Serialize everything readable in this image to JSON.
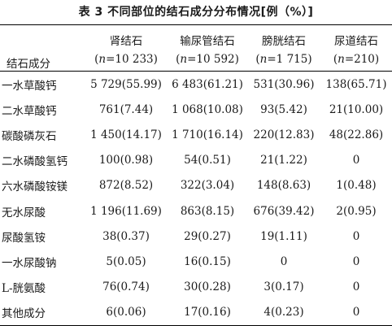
{
  "title": "表 3   不同部位的结石成分分布情况[例（%）]",
  "header": {
    "row_label": "结石成分",
    "columns": [
      {
        "label": "肾结石",
        "n_prefix": "(",
        "n_var": "n",
        "n_value": "=10 233)"
      },
      {
        "label": "输尿管结石",
        "n_prefix": "(",
        "n_var": "n",
        "n_value": "=10 592)"
      },
      {
        "label": "膀胱结石",
        "n_prefix": "(",
        "n_var": "n",
        "n_value": "=1 715)"
      },
      {
        "label": "尿道结石",
        "n_prefix": "(",
        "n_var": "n",
        "n_value": "=210)"
      }
    ]
  },
  "rows": [
    {
      "name": "一水草酸钙",
      "cells": [
        "5 729(55.99)",
        "6 483(61.21)",
        "531(30.96)",
        "138(65.71)"
      ]
    },
    {
      "name": "二水草酸钙",
      "cells": [
        "761(7.44)",
        "1 068(10.08)",
        "93(5.42)",
        "21(10.00)"
      ]
    },
    {
      "name": "碳酸磷灰石",
      "cells": [
        "1 450(14.17)",
        "1 710(16.14)",
        "220(12.83)",
        "48(22.86)"
      ]
    },
    {
      "name": "二水磷酸氢钙",
      "cells": [
        "100(0.98)",
        "54(0.51)",
        "21(1.22)",
        "0"
      ]
    },
    {
      "name": "六水磷酸铵镁",
      "cells": [
        "872(8.52)",
        "322(3.04)",
        "148(8.63)",
        "1(0.48)"
      ]
    },
    {
      "name": "无水尿酸",
      "cells": [
        "1 196(11.69)",
        "863(8.15)",
        "676(39.42)",
        "2(0.95)"
      ]
    },
    {
      "name": "尿酸氢铵",
      "cells": [
        "38(0.37)",
        "29(0.27)",
        "19(1.11)",
        "0"
      ]
    },
    {
      "name": "一水尿酸钠",
      "cells": [
        "5(0.05)",
        "16(0.15)",
        "0",
        "0"
      ]
    },
    {
      "name": "L-胱氨酸",
      "cells": [
        "76(0.74)",
        "30(0.28)",
        "3(0.17)",
        "0"
      ]
    },
    {
      "name": "其他成分",
      "cells": [
        "6(0.06)",
        "17(0.16)",
        "4(0.23)",
        "0"
      ]
    }
  ]
}
